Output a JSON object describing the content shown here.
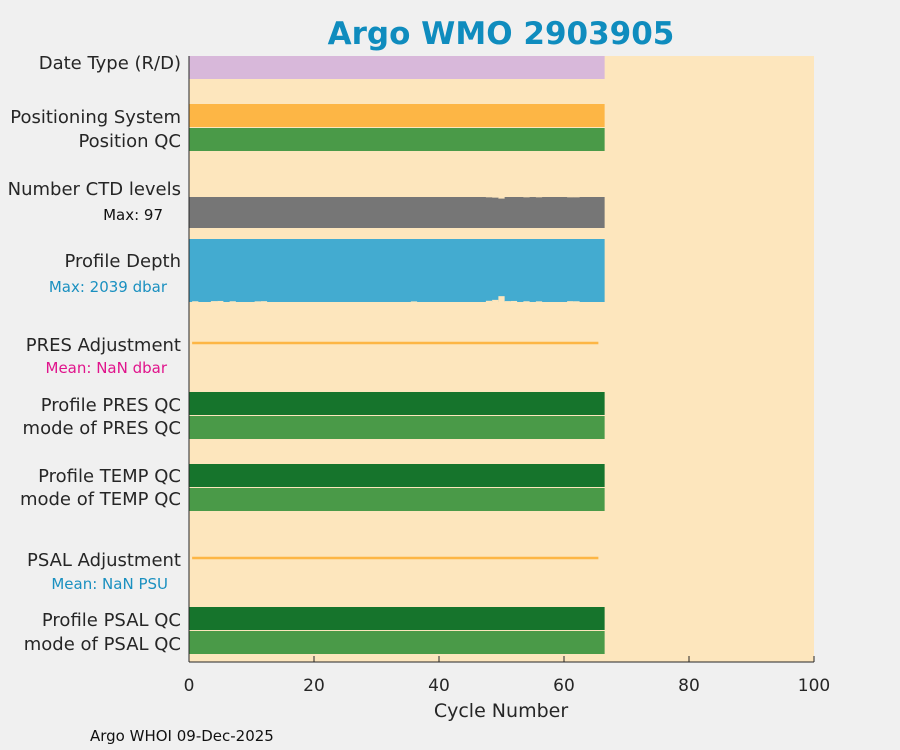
{
  "chart_data": {
    "type": "bar",
    "title": "Argo WMO 2903905",
    "xlabel": "Cycle Number",
    "xlim": [
      0,
      100
    ],
    "xticks": [
      0,
      20,
      40,
      60,
      80,
      100
    ],
    "last_cycle": 66.5,
    "footer": "Argo WHOI 09-Dec-2025",
    "colors": {
      "title": "#0f8cbe",
      "plot_bg": "#fde6bd",
      "date_type": "#d8b8da",
      "positioning_system": "#fdb645",
      "qc_light_green": "#4a9a48",
      "qc_dark_green": "#16742c",
      "ctd_levels": "#767676",
      "profile_depth": "#43abd0",
      "adjustment_line": "#fdb645",
      "pres_mean_text": "#e0148c",
      "depth_max_text": "#1a90c0",
      "psal_mean_text": "#1a90c0"
    },
    "rows": {
      "date_type": {
        "label": "Date Type (R/D)"
      },
      "positioning_system": {
        "label": "Positioning System"
      },
      "position_qc": {
        "label": "Position QC"
      },
      "ctd_levels": {
        "label": "Number CTD levels",
        "sublabel": "Max: 97",
        "max": 97
      },
      "profile_depth": {
        "label": "Profile Depth",
        "sublabel": "Max: 2039 dbar",
        "max": 2039
      },
      "pres_adjustment": {
        "label": "PRES Adjustment",
        "sublabel": "Mean:  NaN dbar"
      },
      "profile_pres_qc": {
        "label": "Profile PRES QC"
      },
      "mode_pres_qc": {
        "label": "mode of PRES QC"
      },
      "profile_temp_qc": {
        "label": "Profile TEMP QC"
      },
      "mode_temp_qc": {
        "label": "mode of TEMP QC"
      },
      "psal_adjustment": {
        "label": "PSAL Adjustment",
        "sublabel": "Mean:  NaN PSU"
      },
      "profile_psal_qc": {
        "label": "Profile PSAL QC"
      },
      "mode_psal_qc": {
        "label": "mode of PSAL QC"
      }
    },
    "ctd_dips": [
      {
        "from": 47.5,
        "to": 48.5,
        "value": 96
      },
      {
        "from": 48.5,
        "to": 49.5,
        "value": 95
      },
      {
        "from": 49.5,
        "to": 50.5,
        "value": 92
      },
      {
        "from": 53.5,
        "to": 54.5,
        "value": 96
      },
      {
        "from": 55.5,
        "to": 56.5,
        "value": 96
      },
      {
        "from": 60.5,
        "to": 61.5,
        "value": 96
      },
      {
        "from": 61.5,
        "to": 62.5,
        "value": 96
      }
    ],
    "depth_notches": [
      {
        "from": 0.5,
        "to": 1.5,
        "value": 2015
      },
      {
        "from": 3.5,
        "to": 4.5,
        "value": 2010
      },
      {
        "from": 4.5,
        "to": 5.5,
        "value": 2005
      },
      {
        "from": 6.5,
        "to": 7.5,
        "value": 2015
      },
      {
        "from": 10.5,
        "to": 11.5,
        "value": 2018
      },
      {
        "from": 11.5,
        "to": 12.5,
        "value": 2012
      },
      {
        "from": 35.5,
        "to": 36.5,
        "value": 2020
      },
      {
        "from": 47.5,
        "to": 48.5,
        "value": 2000
      },
      {
        "from": 48.5,
        "to": 49.5,
        "value": 1970
      },
      {
        "from": 49.5,
        "to": 50.5,
        "value": 1850
      },
      {
        "from": 50.5,
        "to": 51.5,
        "value": 2010
      },
      {
        "from": 51.5,
        "to": 52.5,
        "value": 2005
      },
      {
        "from": 53.5,
        "to": 54.5,
        "value": 2015
      },
      {
        "from": 55.5,
        "to": 56.5,
        "value": 2018
      },
      {
        "from": 60.5,
        "to": 61.5,
        "value": 2012
      },
      {
        "from": 61.5,
        "to": 62.5,
        "value": 2015
      }
    ]
  }
}
